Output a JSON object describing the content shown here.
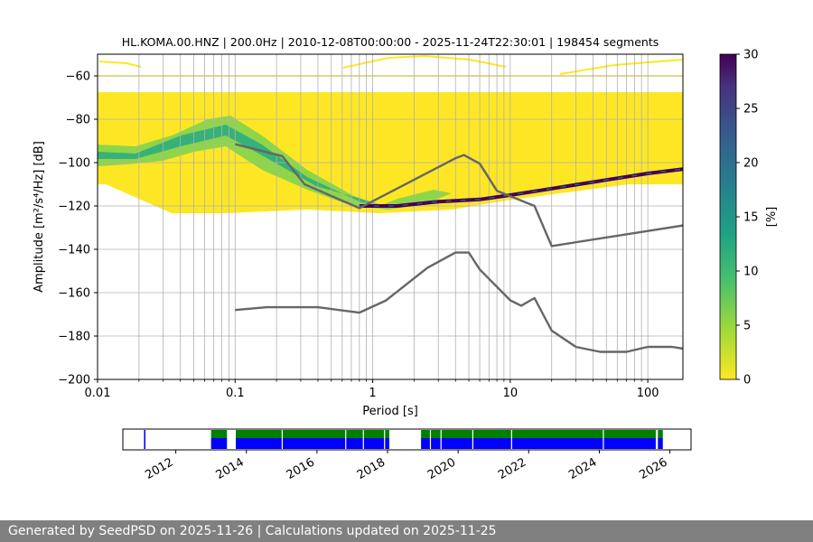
{
  "chart_data": {
    "type": "heatmap",
    "title": "HL.KOMA.00.HNZ | 200.0Hz | 2010-12-08T00:00:00 - 2025-11-24T22:30:01 | 198454 segments",
    "xlabel": "Period [s]",
    "ylabel": "Amplitude [m²/s⁴/Hz] [dB]",
    "xscale": "log",
    "xlim": [
      0.01,
      180
    ],
    "ylim": [
      -200,
      -50
    ],
    "x_ticks": [
      0.01,
      0.1,
      1,
      10,
      100
    ],
    "x_tick_labels": [
      "0.01",
      "0.1",
      "1",
      "10",
      "100"
    ],
    "y_ticks": [
      -200,
      -180,
      -160,
      -140,
      -120,
      -100,
      -80,
      -60
    ],
    "y_tick_labels": [
      "−200",
      "−180",
      "−160",
      "−140",
      "−120",
      "−100",
      "−80",
      "−60"
    ],
    "grid": true,
    "colorbar": {
      "label": "[%]",
      "min": 0,
      "max": 30,
      "ticks": [
        "0",
        "5",
        "10",
        "15",
        "20",
        "25",
        "30"
      ],
      "colormap": "viridis_r"
    },
    "series": [
      {
        "name": "",
        "x": [
          0.1,
          0.22,
          0.32,
          0.8,
          4.0,
          4.6,
          6.0,
          8.0,
          15.0,
          20.0,
          180.0
        ],
        "values": [
          -91.5,
          -97.0,
          -110.0,
          -121.0,
          -98.0,
          -96.5,
          -100.5,
          -113.0,
          -120.0,
          -138.5,
          -129.0
        ]
      },
      {
        "name": "",
        "x": [
          0.1,
          0.17,
          0.4,
          0.8,
          1.24,
          2.5,
          4.0,
          5.0,
          6.0,
          10.0,
          12.0,
          15.0,
          20.0,
          30.0,
          45.0,
          70.0,
          100.0,
          150.0,
          180.0
        ],
        "values": [
          -168.0,
          -166.7,
          -166.7,
          -169.2,
          -163.7,
          -148.5,
          -141.5,
          -141.5,
          -149.3,
          -163.5,
          -166.0,
          -162.5,
          -177.5,
          -185.0,
          -187.3,
          -187.3,
          -185.0,
          -185.0,
          -185.8
        ]
      }
    ],
    "density_ridge": {
      "x": [
        0.01,
        0.02,
        0.04,
        0.07,
        0.1,
        0.2,
        0.4,
        0.8,
        1.5,
        3,
        6,
        10,
        20,
        50,
        100,
        180
      ],
      "values": [
        -103,
        -103,
        -95,
        -85,
        -85,
        -98,
        -112,
        -120,
        -120,
        -118,
        -117,
        -115,
        -112,
        -108,
        -105,
        -103
      ]
    },
    "timeline": {
      "tick_labels": [
        "2012",
        "2014",
        "2016",
        "2018",
        "2020",
        "2022",
        "2024",
        "2026"
      ],
      "tick_years": [
        2012,
        2014,
        2016,
        2018,
        2020,
        2022,
        2024,
        2026
      ],
      "range_years": [
        2010.5,
        2026.6
      ],
      "coverage": [
        {
          "start": 2011.1,
          "end": 2011.14,
          "colors": [
            "#0000ff"
          ]
        },
        {
          "start": 2013.0,
          "end": 2013.45,
          "colors": [
            "#008000",
            "#0000ff"
          ]
        },
        {
          "start": 2013.7,
          "end": 2018.05,
          "colors": [
            "#008000",
            "#0000ff"
          ]
        },
        {
          "start": 2018.95,
          "end": 2025.6,
          "colors": [
            "#008000",
            "#0000ff"
          ]
        },
        {
          "start": 2025.65,
          "end": 2025.8,
          "colors": [
            "#008000",
            "#0000ff"
          ]
        }
      ]
    }
  },
  "footer": {
    "text": "Generated by SeedPSD on 2025-11-26 | Calculations updated on 2025-11-25"
  }
}
